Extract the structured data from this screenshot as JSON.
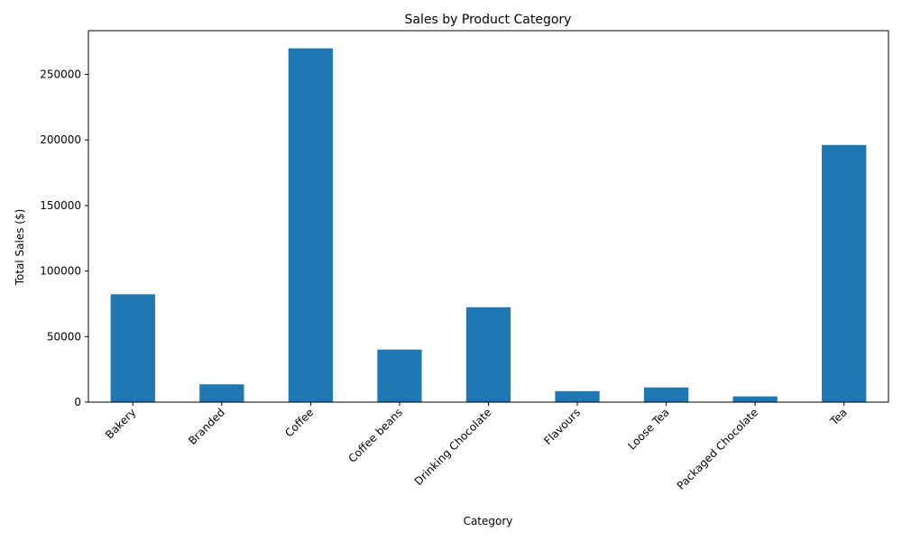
{
  "chart_data": {
    "type": "bar",
    "title": "Sales by Product Category",
    "xlabel": "Category",
    "ylabel": "Total Sales ($)",
    "categories": [
      "Bakery",
      "Branded",
      "Coffee",
      "Coffee beans",
      "Drinking Chocolate",
      "Flavours",
      "Loose Tea",
      "Packaged Chocolate",
      "Tea"
    ],
    "values": [
      82300,
      13600,
      269900,
      40100,
      72400,
      8400,
      11200,
      4400,
      196200
    ],
    "ylim": [
      0,
      283400
    ],
    "yticks": [
      0,
      50000,
      100000,
      150000,
      200000,
      250000
    ],
    "bar_color": "#1f77b4",
    "grid": false,
    "legend": "none"
  }
}
